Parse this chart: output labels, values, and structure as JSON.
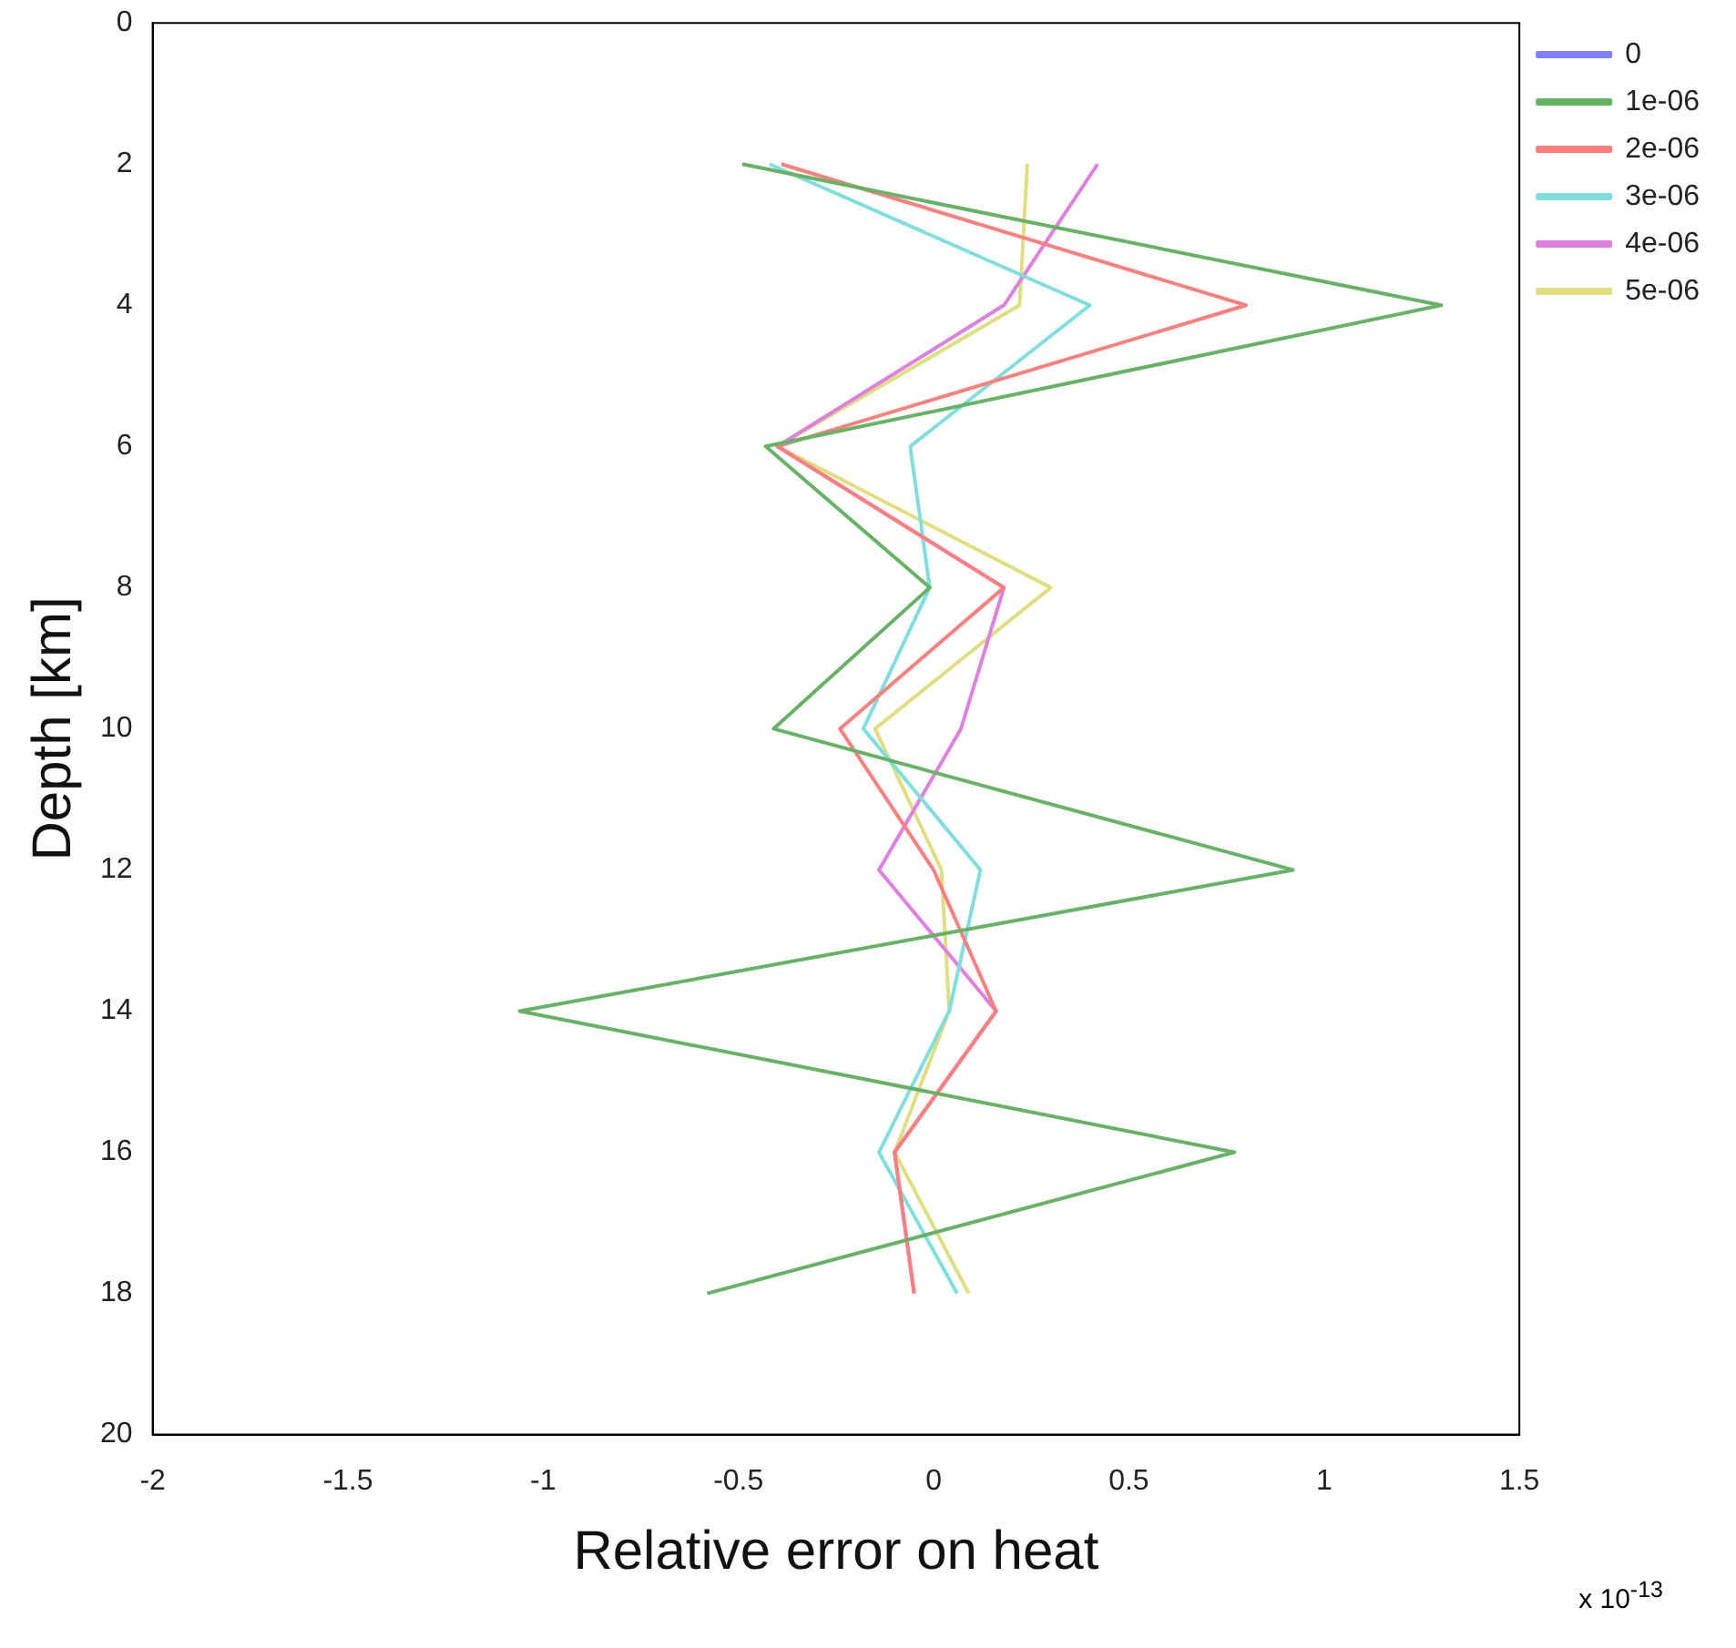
{
  "chart_data": {
    "type": "line",
    "xlabel": "Relative error on heat",
    "ylabel": "Depth [km]",
    "annotations": [
      "x 10$^{-13}$"
    ],
    "xlim": [
      -2,
      1.5
    ],
    "xticks": [
      -2,
      -1.5,
      -1,
      -0.5,
      0,
      0.5,
      1,
      1.5
    ],
    "ylim": [
      20,
      0
    ],
    "yticks": [
      0,
      2,
      4,
      6,
      8,
      10,
      12,
      14,
      16,
      18,
      20
    ],
    "grid": false,
    "legend": "top right",
    "marker": "none",
    "line_style": "solid",
    "series": [
      {
        "name": "0",
        "color": "#7f7fff",
        "x": [
          null,
          null,
          null,
          null,
          null,
          null,
          null,
          null,
          null
        ],
        "values": [
          null,
          null,
          null,
          null,
          null,
          null,
          null,
          null,
          null
        ]
      },
      {
        "name": "1e-06",
        "color": "#66b366",
        "x": [
          -0.49,
          1.3,
          -0.43,
          -0.01,
          -0.41,
          0.92,
          -1.06,
          0.77,
          -0.58
        ],
        "values": [
          2,
          4,
          6,
          8,
          10,
          12,
          14,
          16,
          18
        ]
      },
      {
        "name": "2e-06",
        "color": "#ff7f7f",
        "x": [
          -0.39,
          0.8,
          -0.4,
          0.18,
          -0.24,
          0.0,
          0.16,
          -0.1,
          -0.05
        ],
        "values": [
          2,
          4,
          6,
          8,
          10,
          12,
          14,
          16,
          18
        ]
      },
      {
        "name": "3e-06",
        "color": "#7fdfdf",
        "x": [
          -0.42,
          0.4,
          -0.06,
          -0.01,
          -0.18,
          0.12,
          0.04,
          -0.14,
          0.06
        ],
        "values": [
          2,
          4,
          6,
          8,
          10,
          12,
          14,
          16,
          18
        ]
      },
      {
        "name": "4e-06",
        "color": "#df7fdf",
        "x": [
          0.42,
          0.18,
          -0.4,
          0.18,
          0.07,
          -0.14,
          0.16,
          -0.1,
          -0.05
        ],
        "values": [
          2,
          4,
          6,
          8,
          10,
          12,
          14,
          16,
          18
        ]
      },
      {
        "name": "5e-06",
        "color": "#dfdf7f",
        "x": [
          0.24,
          0.22,
          -0.4,
          0.3,
          -0.15,
          0.02,
          0.04,
          -0.1,
          0.09
        ],
        "values": [
          2,
          4,
          6,
          8,
          10,
          12,
          14,
          16,
          18
        ]
      }
    ]
  }
}
